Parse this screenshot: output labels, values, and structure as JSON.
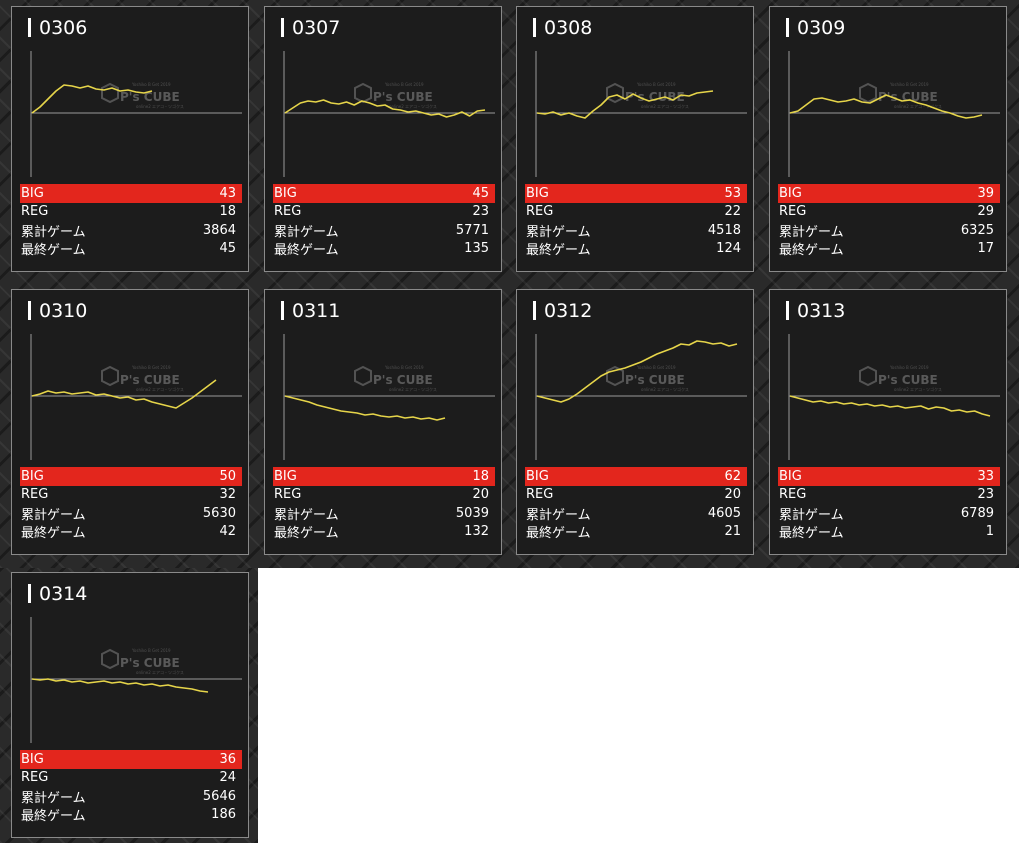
{
  "labels": {
    "big": "BIG",
    "reg": "REG",
    "total_games": "累計ゲーム",
    "last_game": "最終ゲーム"
  },
  "watermark": {
    "brand": "P's CUBE",
    "sub": "Yoshiko B Get 2019",
    "sub2": "online2 エアコ・ツゴクス"
  },
  "colors": {
    "big_bar": "#e3261d",
    "line": "#e6d54a",
    "card_bg": "#1c1c1c"
  },
  "machines": [
    {
      "id": "0306",
      "big": "43",
      "reg": "18",
      "total_games": "3864",
      "last_game": "45",
      "trend": [
        0,
        6,
        14,
        22,
        28,
        27,
        25,
        27,
        24,
        23,
        25,
        22,
        23,
        21,
        20,
        22
      ]
    },
    {
      "id": "0307",
      "big": "45",
      "reg": "23",
      "total_games": "5771",
      "last_game": "135",
      "trend": [
        0,
        5,
        10,
        12,
        11,
        13,
        10,
        9,
        11,
        8,
        12,
        10,
        7,
        8,
        4,
        3,
        1,
        2,
        0,
        -2,
        -1,
        -4,
        -2,
        1,
        -3,
        2,
        3
      ]
    },
    {
      "id": "0308",
      "big": "53",
      "reg": "22",
      "total_games": "4518",
      "last_game": "124",
      "trend": [
        0,
        -1,
        1,
        -2,
        0,
        -3,
        -5,
        2,
        8,
        16,
        18,
        14,
        19,
        15,
        12,
        14,
        16,
        13,
        18,
        17,
        20,
        21,
        22
      ]
    },
    {
      "id": "0309",
      "big": "39",
      "reg": "29",
      "total_games": "6325",
      "last_game": "17",
      "trend": [
        0,
        2,
        8,
        14,
        15,
        13,
        11,
        12,
        14,
        11,
        10,
        14,
        18,
        15,
        12,
        13,
        10,
        8,
        5,
        2,
        0,
        -3,
        -5,
        -4,
        -2
      ]
    },
    {
      "id": "0310",
      "big": "50",
      "reg": "32",
      "total_games": "5630",
      "last_game": "42",
      "trend": [
        0,
        2,
        5,
        3,
        4,
        2,
        3,
        4,
        1,
        2,
        0,
        -2,
        -1,
        -4,
        -3,
        -6,
        -8,
        -10,
        -12,
        -7,
        -2,
        4,
        10,
        16
      ]
    },
    {
      "id": "0311",
      "big": "18",
      "reg": "20",
      "total_games": "5039",
      "last_game": "132",
      "trend": [
        0,
        -2,
        -4,
        -6,
        -9,
        -11,
        -13,
        -15,
        -16,
        -17,
        -19,
        -18,
        -20,
        -21,
        -20,
        -22,
        -21,
        -23,
        -22,
        -24,
        -22
      ]
    },
    {
      "id": "0312",
      "big": "62",
      "reg": "20",
      "total_games": "4605",
      "last_game": "21",
      "trend": [
        0,
        -2,
        -4,
        -6,
        -3,
        2,
        8,
        14,
        20,
        24,
        26,
        28,
        31,
        34,
        38,
        42,
        45,
        48,
        52,
        51,
        55,
        54,
        52,
        53,
        50,
        52
      ]
    },
    {
      "id": "0313",
      "big": "33",
      "reg": "23",
      "total_games": "6789",
      "last_game": "1",
      "trend": [
        0,
        -2,
        -4,
        -6,
        -5,
        -7,
        -6,
        -8,
        -7,
        -9,
        -8,
        -10,
        -9,
        -11,
        -10,
        -12,
        -11,
        -10,
        -13,
        -11,
        -12,
        -15,
        -14,
        -16,
        -15,
        -18,
        -20
      ]
    },
    {
      "id": "0314",
      "big": "36",
      "reg": "24",
      "total_games": "5646",
      "last_game": "186",
      "trend": [
        0,
        -1,
        0,
        -2,
        -1,
        -3,
        -2,
        -4,
        -3,
        -2,
        -4,
        -3,
        -5,
        -4,
        -6,
        -5,
        -7,
        -6,
        -8,
        -9,
        -10,
        -12,
        -13
      ]
    }
  ]
}
